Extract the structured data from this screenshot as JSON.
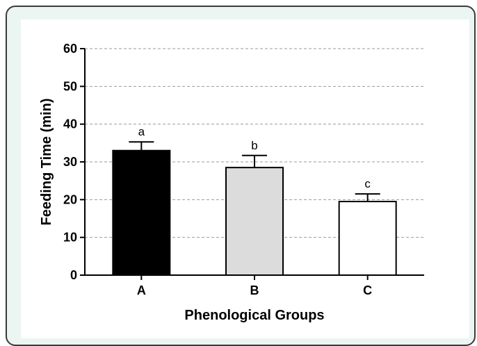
{
  "chart_data": {
    "type": "bar",
    "categories": [
      "A",
      "B",
      "C"
    ],
    "values": [
      33,
      28.5,
      19.5
    ],
    "errors": [
      2.3,
      3.2,
      2.0
    ],
    "annotations": [
      "a",
      "b",
      "c"
    ],
    "bar_colors": [
      "#000000",
      "#dcdcdc",
      "#ffffff"
    ],
    "xlabel": "Phenological Groups",
    "ylabel": "Feeding Time (min)",
    "ylim": [
      0,
      60
    ],
    "yticks": [
      0,
      10,
      20,
      30,
      40,
      50,
      60
    ],
    "grid": "horizontal dashed"
  }
}
